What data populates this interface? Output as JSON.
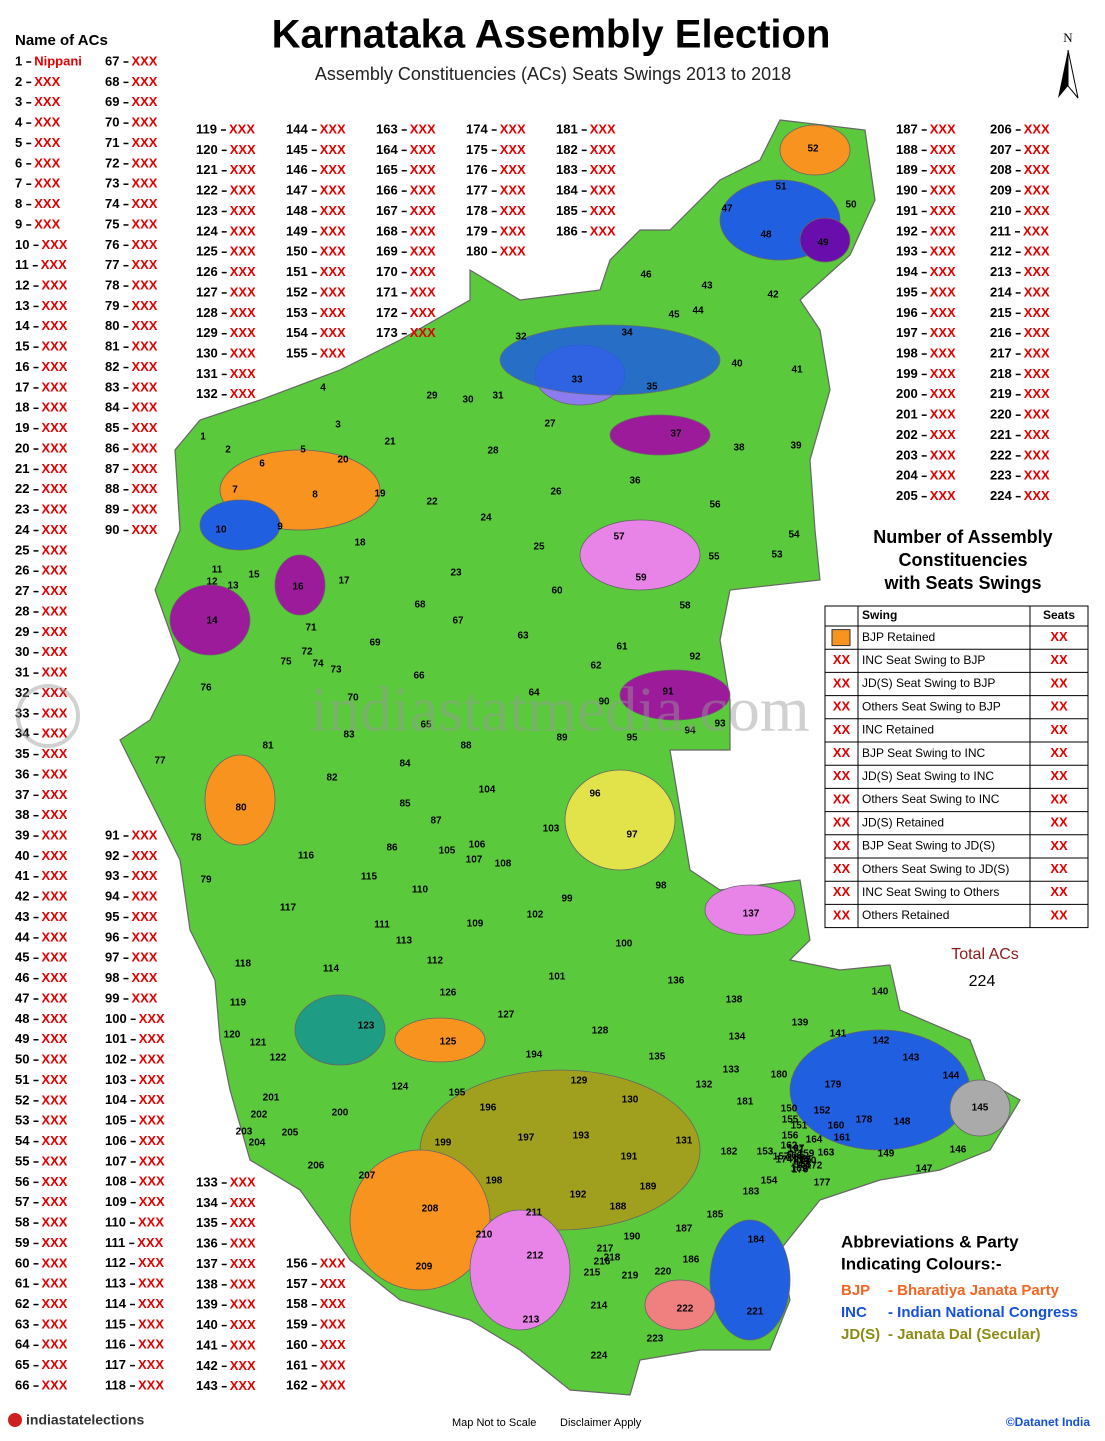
{
  "header": {
    "title": "Karnataka Assembly Election",
    "subtitle": "Assembly Constituencies (ACs) Seats Swings 2013 to 2018",
    "list_title": "Name of ACs",
    "north": "N"
  },
  "constituencies": [
    {
      "no": 1,
      "name": "Nippani"
    },
    {
      "no": 2,
      "name": "XXX"
    },
    {
      "no": 3,
      "name": "XXX"
    },
    {
      "no": 4,
      "name": "XXX"
    },
    {
      "no": 5,
      "name": "XXX"
    },
    {
      "no": 6,
      "name": "XXX"
    },
    {
      "no": 7,
      "name": "XXX"
    },
    {
      "no": 8,
      "name": "XXX"
    },
    {
      "no": 9,
      "name": "XXX"
    },
    {
      "no": 10,
      "name": "XXX"
    },
    {
      "no": 11,
      "name": "XXX"
    },
    {
      "no": 12,
      "name": "XXX"
    },
    {
      "no": 13,
      "name": "XXX"
    },
    {
      "no": 14,
      "name": "XXX"
    },
    {
      "no": 15,
      "name": "XXX"
    },
    {
      "no": 16,
      "name": "XXX"
    },
    {
      "no": 17,
      "name": "XXX"
    },
    {
      "no": 18,
      "name": "XXX"
    },
    {
      "no": 19,
      "name": "XXX"
    },
    {
      "no": 20,
      "name": "XXX"
    },
    {
      "no": 21,
      "name": "XXX"
    },
    {
      "no": 22,
      "name": "XXX"
    },
    {
      "no": 23,
      "name": "XXX"
    },
    {
      "no": 24,
      "name": "XXX"
    },
    {
      "no": 25,
      "name": "XXX"
    },
    {
      "no": 26,
      "name": "XXX"
    },
    {
      "no": 27,
      "name": "XXX"
    },
    {
      "no": 28,
      "name": "XXX"
    },
    {
      "no": 29,
      "name": "XXX"
    },
    {
      "no": 30,
      "name": "XXX"
    },
    {
      "no": 31,
      "name": "XXX"
    },
    {
      "no": 32,
      "name": "XXX"
    },
    {
      "no": 33,
      "name": "XXX"
    },
    {
      "no": 34,
      "name": "XXX"
    },
    {
      "no": 35,
      "name": "XXX"
    },
    {
      "no": 36,
      "name": "XXX"
    },
    {
      "no": 37,
      "name": "XXX"
    },
    {
      "no": 38,
      "name": "XXX"
    },
    {
      "no": 39,
      "name": "XXX"
    },
    {
      "no": 40,
      "name": "XXX"
    },
    {
      "no": 41,
      "name": "XXX"
    },
    {
      "no": 42,
      "name": "XXX"
    },
    {
      "no": 43,
      "name": "XXX"
    },
    {
      "no": 44,
      "name": "XXX"
    },
    {
      "no": 45,
      "name": "XXX"
    },
    {
      "no": 46,
      "name": "XXX"
    },
    {
      "no": 47,
      "name": "XXX"
    },
    {
      "no": 48,
      "name": "XXX"
    },
    {
      "no": 49,
      "name": "XXX"
    },
    {
      "no": 50,
      "name": "XXX"
    },
    {
      "no": 51,
      "name": "XXX"
    },
    {
      "no": 52,
      "name": "XXX"
    },
    {
      "no": 53,
      "name": "XXX"
    },
    {
      "no": 54,
      "name": "XXX"
    },
    {
      "no": 55,
      "name": "XXX"
    },
    {
      "no": 56,
      "name": "XXX"
    },
    {
      "no": 57,
      "name": "XXX"
    },
    {
      "no": 58,
      "name": "XXX"
    },
    {
      "no": 59,
      "name": "XXX"
    },
    {
      "no": 60,
      "name": "XXX"
    },
    {
      "no": 61,
      "name": "XXX"
    },
    {
      "no": 62,
      "name": "XXX"
    },
    {
      "no": 63,
      "name": "XXX"
    },
    {
      "no": 64,
      "name": "XXX"
    },
    {
      "no": 65,
      "name": "XXX"
    },
    {
      "no": 66,
      "name": "XXX"
    },
    {
      "no": 67,
      "name": "XXX"
    },
    {
      "no": 68,
      "name": "XXX"
    },
    {
      "no": 69,
      "name": "XXX"
    },
    {
      "no": 70,
      "name": "XXX"
    },
    {
      "no": 71,
      "name": "XXX"
    },
    {
      "no": 72,
      "name": "XXX"
    },
    {
      "no": 73,
      "name": "XXX"
    },
    {
      "no": 74,
      "name": "XXX"
    },
    {
      "no": 75,
      "name": "XXX"
    },
    {
      "no": 76,
      "name": "XXX"
    },
    {
      "no": 77,
      "name": "XXX"
    },
    {
      "no": 78,
      "name": "XXX"
    },
    {
      "no": 79,
      "name": "XXX"
    },
    {
      "no": 80,
      "name": "XXX"
    },
    {
      "no": 81,
      "name": "XXX"
    },
    {
      "no": 82,
      "name": "XXX"
    },
    {
      "no": 83,
      "name": "XXX"
    },
    {
      "no": 84,
      "name": "XXX"
    },
    {
      "no": 85,
      "name": "XXX"
    },
    {
      "no": 86,
      "name": "XXX"
    },
    {
      "no": 87,
      "name": "XXX"
    },
    {
      "no": 88,
      "name": "XXX"
    },
    {
      "no": 89,
      "name": "XXX"
    },
    {
      "no": 90,
      "name": "XXX"
    },
    {
      "no": 91,
      "name": "XXX"
    },
    {
      "no": 92,
      "name": "XXX"
    },
    {
      "no": 93,
      "name": "XXX"
    },
    {
      "no": 94,
      "name": "XXX"
    },
    {
      "no": 95,
      "name": "XXX"
    },
    {
      "no": 96,
      "name": "XXX"
    },
    {
      "no": 97,
      "name": "XXX"
    },
    {
      "no": 98,
      "name": "XXX"
    },
    {
      "no": 99,
      "name": "XXX"
    },
    {
      "no": 100,
      "name": "XXX"
    },
    {
      "no": 101,
      "name": "XXX"
    },
    {
      "no": 102,
      "name": "XXX"
    },
    {
      "no": 103,
      "name": "XXX"
    },
    {
      "no": 104,
      "name": "XXX"
    },
    {
      "no": 105,
      "name": "XXX"
    },
    {
      "no": 106,
      "name": "XXX"
    },
    {
      "no": 107,
      "name": "XXX"
    },
    {
      "no": 108,
      "name": "XXX"
    },
    {
      "no": 109,
      "name": "XXX"
    },
    {
      "no": 110,
      "name": "XXX"
    },
    {
      "no": 111,
      "name": "XXX"
    },
    {
      "no": 112,
      "name": "XXX"
    },
    {
      "no": 113,
      "name": "XXX"
    },
    {
      "no": 114,
      "name": "XXX"
    },
    {
      "no": 115,
      "name": "XXX"
    },
    {
      "no": 116,
      "name": "XXX"
    },
    {
      "no": 117,
      "name": "XXX"
    },
    {
      "no": 118,
      "name": "XXX"
    },
    {
      "no": 119,
      "name": "XXX"
    },
    {
      "no": 120,
      "name": "XXX"
    },
    {
      "no": 121,
      "name": "XXX"
    },
    {
      "no": 122,
      "name": "XXX"
    },
    {
      "no": 123,
      "name": "XXX"
    },
    {
      "no": 124,
      "name": "XXX"
    },
    {
      "no": 125,
      "name": "XXX"
    },
    {
      "no": 126,
      "name": "XXX"
    },
    {
      "no": 127,
      "name": "XXX"
    },
    {
      "no": 128,
      "name": "XXX"
    },
    {
      "no": 129,
      "name": "XXX"
    },
    {
      "no": 130,
      "name": "XXX"
    },
    {
      "no": 131,
      "name": "XXX"
    },
    {
      "no": 132,
      "name": "XXX"
    },
    {
      "no": 133,
      "name": "XXX"
    },
    {
      "no": 134,
      "name": "XXX"
    },
    {
      "no": 135,
      "name": "XXX"
    },
    {
      "no": 136,
      "name": "XXX"
    },
    {
      "no": 137,
      "name": "XXX"
    },
    {
      "no": 138,
      "name": "XXX"
    },
    {
      "no": 139,
      "name": "XXX"
    },
    {
      "no": 140,
      "name": "XXX"
    },
    {
      "no": 141,
      "name": "XXX"
    },
    {
      "no": 142,
      "name": "XXX"
    },
    {
      "no": 143,
      "name": "XXX"
    },
    {
      "no": 144,
      "name": "XXX"
    },
    {
      "no": 145,
      "name": "XXX"
    },
    {
      "no": 146,
      "name": "XXX"
    },
    {
      "no": 147,
      "name": "XXX"
    },
    {
      "no": 148,
      "name": "XXX"
    },
    {
      "no": 149,
      "name": "XXX"
    },
    {
      "no": 150,
      "name": "XXX"
    },
    {
      "no": 151,
      "name": "XXX"
    },
    {
      "no": 152,
      "name": "XXX"
    },
    {
      "no": 153,
      "name": "XXX"
    },
    {
      "no": 154,
      "name": "XXX"
    },
    {
      "no": 155,
      "name": "XXX"
    },
    {
      "no": 156,
      "name": "XXX"
    },
    {
      "no": 157,
      "name": "XXX"
    },
    {
      "no": 158,
      "name": "XXX"
    },
    {
      "no": 159,
      "name": "XXX"
    },
    {
      "no": 160,
      "name": "XXX"
    },
    {
      "no": 161,
      "name": "XXX"
    },
    {
      "no": 162,
      "name": "XXX"
    },
    {
      "no": 163,
      "name": "XXX"
    },
    {
      "no": 164,
      "name": "XXX"
    },
    {
      "no": 165,
      "name": "XXX"
    },
    {
      "no": 166,
      "name": "XXX"
    },
    {
      "no": 167,
      "name": "XXX"
    },
    {
      "no": 168,
      "name": "XXX"
    },
    {
      "no": 169,
      "name": "XXX"
    },
    {
      "no": 170,
      "name": "XXX"
    },
    {
      "no": 171,
      "name": "XXX"
    },
    {
      "no": 172,
      "name": "XXX"
    },
    {
      "no": 173,
      "name": "XXX"
    },
    {
      "no": 174,
      "name": "XXX"
    },
    {
      "no": 175,
      "name": "XXX"
    },
    {
      "no": 176,
      "name": "XXX"
    },
    {
      "no": 177,
      "name": "XXX"
    },
    {
      "no": 178,
      "name": "XXX"
    },
    {
      "no": 179,
      "name": "XXX"
    },
    {
      "no": 180,
      "name": "XXX"
    },
    {
      "no": 181,
      "name": "XXX"
    },
    {
      "no": 182,
      "name": "XXX"
    },
    {
      "no": 183,
      "name": "XXX"
    },
    {
      "no": 184,
      "name": "XXX"
    },
    {
      "no": 185,
      "name": "XXX"
    },
    {
      "no": 186,
      "name": "XXX"
    },
    {
      "no": 187,
      "name": "XXX"
    },
    {
      "no": 188,
      "name": "XXX"
    },
    {
      "no": 189,
      "name": "XXX"
    },
    {
      "no": 190,
      "name": "XXX"
    },
    {
      "no": 191,
      "name": "XXX"
    },
    {
      "no": 192,
      "name": "XXX"
    },
    {
      "no": 193,
      "name": "XXX"
    },
    {
      "no": 194,
      "name": "XXX"
    },
    {
      "no": 195,
      "name": "XXX"
    },
    {
      "no": 196,
      "name": "XXX"
    },
    {
      "no": 197,
      "name": "XXX"
    },
    {
      "no": 198,
      "name": "XXX"
    },
    {
      "no": 199,
      "name": "XXX"
    },
    {
      "no": 200,
      "name": "XXX"
    },
    {
      "no": 201,
      "name": "XXX"
    },
    {
      "no": 202,
      "name": "XXX"
    },
    {
      "no": 203,
      "name": "XXX"
    },
    {
      "no": 204,
      "name": "XXX"
    },
    {
      "no": 205,
      "name": "XXX"
    },
    {
      "no": 206,
      "name": "XXX"
    },
    {
      "no": 207,
      "name": "XXX"
    },
    {
      "no": 208,
      "name": "XXX"
    },
    {
      "no": 209,
      "name": "XXX"
    },
    {
      "no": 210,
      "name": "XXX"
    },
    {
      "no": 211,
      "name": "XXX"
    },
    {
      "no": 212,
      "name": "XXX"
    },
    {
      "no": 213,
      "name": "XXX"
    },
    {
      "no": 214,
      "name": "XXX"
    },
    {
      "no": 215,
      "name": "XXX"
    },
    {
      "no": 216,
      "name": "XXX"
    },
    {
      "no": 217,
      "name": "XXX"
    },
    {
      "no": 218,
      "name": "XXX"
    },
    {
      "no": 219,
      "name": "XXX"
    },
    {
      "no": 220,
      "name": "XXX"
    },
    {
      "no": 221,
      "name": "XXX"
    },
    {
      "no": 222,
      "name": "XXX"
    },
    {
      "no": 223,
      "name": "XXX"
    },
    {
      "no": 224,
      "name": "XXX"
    }
  ],
  "legend": {
    "title_lines": [
      "Number of Assembly",
      "Constituencies",
      "with Seats Swings"
    ],
    "columns": [
      "Swing",
      "Seats"
    ],
    "rows": [
      {
        "marker_color": "#f7931e",
        "swing": "BJP Retained",
        "seats": "XX"
      },
      {
        "marker": "XX",
        "swing": "INC Seat Swing to BJP",
        "seats": "XX"
      },
      {
        "marker": "XX",
        "swing": "JD(S) Seat Swing to BJP",
        "seats": "XX"
      },
      {
        "marker": "XX",
        "swing": "Others Seat Swing to BJP",
        "seats": "XX"
      },
      {
        "marker": "XX",
        "swing": "INC Retained",
        "seats": "XX"
      },
      {
        "marker": "XX",
        "swing": "BJP Seat Swing to INC",
        "seats": "XX"
      },
      {
        "marker": "XX",
        "swing": "JD(S) Seat Swing to INC",
        "seats": "XX"
      },
      {
        "marker": "XX",
        "swing": "Others Seat Swing to INC",
        "seats": "XX"
      },
      {
        "marker": "XX",
        "swing": "JD(S)  Retained",
        "seats": "XX"
      },
      {
        "marker": "XX",
        "swing": "BJP Seat Swing to JD(S)",
        "seats": "XX"
      },
      {
        "marker": "XX",
        "swing": "Others Seat Swing to JD(S)",
        "seats": "XX"
      },
      {
        "marker": "XX",
        "swing": "INC Seat Swing to Others",
        "seats": "XX"
      },
      {
        "marker": "XX",
        "swing": "Others  Retained",
        "seats": "XX"
      }
    ],
    "total_label": "Total ACs",
    "total": 224
  },
  "abbreviations": {
    "title_lines": [
      "Abbreviations & Party",
      "Indicating Colours:-"
    ],
    "parties": [
      {
        "abbr": "BJP",
        "name": "- Bharatiya Janata Party",
        "color": "#f26522"
      },
      {
        "abbr": "INC",
        "name": "-  Indian National Congress",
        "color": "#1450d8"
      },
      {
        "abbr": "JD(S)",
        "name": "- Janata Dal (Secular)",
        "color": "#8c8c14"
      }
    ]
  },
  "footer": {
    "logo": "indiastatelections",
    "note": "Map Not to Scale",
    "disclaimer": "Disclaimer Apply",
    "copyright": "©Datanet India"
  },
  "watermark": "indiastatmedia.com"
}
